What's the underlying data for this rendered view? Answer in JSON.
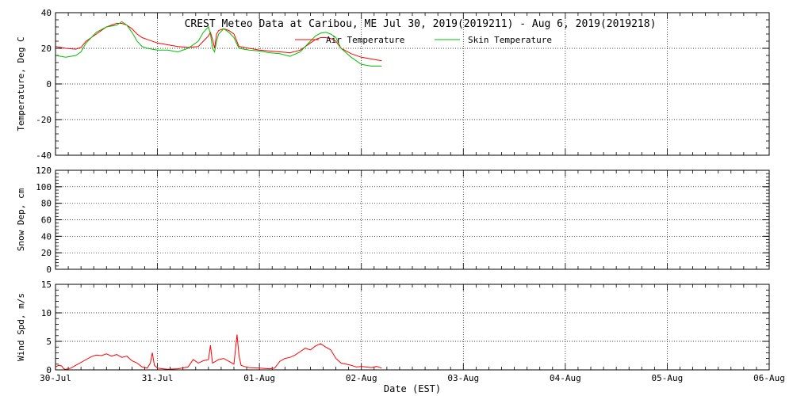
{
  "title": "CREST Meteo Data at Caribou, ME   Jul 30, 2019(2019211) - Aug  6, 2019(2019218)",
  "xlabel": "Date (EST)",
  "colors": {
    "air": "#ff0000",
    "skin": "#00c000",
    "wind": "#ff0000",
    "axes": "#000000"
  },
  "chart_data": [
    {
      "type": "line",
      "ylabel": "Temperature, Deg C",
      "ylim": [
        -40,
        40
      ],
      "yticks": [
        -40,
        -20,
        0,
        20,
        40
      ],
      "xlim": [
        0,
        7
      ],
      "x_unit": "days since 30-Jul 00:00 EST",
      "grid": true,
      "legend_position": "top-center",
      "series": [
        {
          "name": "Air Temperature",
          "color": "#ff0000",
          "x": [
            0,
            0.1,
            0.2,
            0.25,
            0.3,
            0.4,
            0.5,
            0.6,
            0.65,
            0.7,
            0.75,
            0.8,
            0.85,
            0.9,
            1.0,
            1.1,
            1.2,
            1.3,
            1.4,
            1.45,
            1.5,
            1.52,
            1.54,
            1.56,
            1.58,
            1.6,
            1.65,
            1.7,
            1.75,
            1.8,
            1.9,
            2.0,
            2.1,
            2.2,
            2.3,
            2.4,
            2.5,
            2.55,
            2.6,
            2.65,
            2.7,
            2.75,
            2.8,
            2.9,
            3.0,
            3.1,
            3.2
          ],
          "y": [
            21,
            20,
            19.5,
            20.5,
            24,
            28,
            32,
            34,
            34,
            33,
            31,
            28,
            26,
            25,
            23,
            22,
            21,
            20.5,
            21,
            24,
            27,
            29,
            25,
            20,
            28,
            30,
            31,
            30,
            28,
            21,
            20,
            19,
            18.5,
            18,
            17.5,
            19,
            23,
            25,
            26,
            26,
            25.5,
            24,
            20,
            17,
            15,
            14,
            13
          ]
        },
        {
          "name": "Skin Temperature",
          "color": "#00c000",
          "x": [
            0,
            0.1,
            0.2,
            0.25,
            0.3,
            0.4,
            0.5,
            0.6,
            0.65,
            0.7,
            0.75,
            0.8,
            0.85,
            0.9,
            1.0,
            1.1,
            1.2,
            1.3,
            1.4,
            1.45,
            1.5,
            1.52,
            1.54,
            1.56,
            1.58,
            1.6,
            1.65,
            1.7,
            1.75,
            1.8,
            1.9,
            2.0,
            2.1,
            2.2,
            2.3,
            2.4,
            2.5,
            2.55,
            2.6,
            2.65,
            2.7,
            2.75,
            2.8,
            2.9,
            3.0,
            3.1,
            3.2
          ],
          "y": [
            16,
            15,
            16,
            18,
            23,
            29,
            32,
            33,
            35,
            33,
            29,
            24,
            21,
            20,
            19,
            19,
            18,
            20,
            24,
            29,
            32,
            28,
            20,
            18,
            24,
            28,
            31,
            29,
            26,
            20,
            19,
            18.5,
            17.5,
            17,
            15.5,
            18,
            24,
            27,
            28.5,
            29,
            28,
            26,
            20,
            15,
            11,
            10,
            10
          ]
        }
      ]
    },
    {
      "type": "line",
      "ylabel": "Snow Dep, cm",
      "ylim": [
        0,
        120
      ],
      "yticks": [
        0,
        20,
        40,
        60,
        80,
        100,
        120
      ],
      "xlim": [
        0,
        7
      ],
      "grid": true,
      "series": []
    },
    {
      "type": "line",
      "ylabel": "Wind Spd, m/s",
      "ylim": [
        0,
        15
      ],
      "yticks": [
        0,
        5,
        10,
        15
      ],
      "xlim": [
        0,
        7
      ],
      "grid": true,
      "series": [
        {
          "color": "#ff0000",
          "x": [
            0,
            0.03,
            0.06,
            0.08,
            0.1,
            0.15,
            0.2,
            0.3,
            0.35,
            0.4,
            0.45,
            0.5,
            0.55,
            0.6,
            0.65,
            0.7,
            0.75,
            0.8,
            0.85,
            0.9,
            0.93,
            0.95,
            0.97,
            1.0,
            1.05,
            1.1,
            1.2,
            1.3,
            1.35,
            1.4,
            1.45,
            1.5,
            1.52,
            1.54,
            1.56,
            1.6,
            1.65,
            1.7,
            1.75,
            1.78,
            1.8,
            1.82,
            1.85,
            1.9,
            2.0,
            2.1,
            2.15,
            2.2,
            2.25,
            2.3,
            2.35,
            2.4,
            2.45,
            2.5,
            2.55,
            2.6,
            2.65,
            2.7,
            2.75,
            2.8,
            2.85,
            2.9,
            2.95,
            3.0,
            3.05,
            3.1,
            3.15,
            3.2
          ],
          "y": [
            0.5,
            0.8,
            0.7,
            0.2,
            0.1,
            0.3,
            0.8,
            1.8,
            2.3,
            2.6,
            2.5,
            2.8,
            2.4,
            2.7,
            2.2,
            2.4,
            1.6,
            1.2,
            0.5,
            0.3,
            1.2,
            3.0,
            0.8,
            0.3,
            0.2,
            0.1,
            0.2,
            0.5,
            1.8,
            1.2,
            1.6,
            1.8,
            4.3,
            1.2,
            1.4,
            1.8,
            2.0,
            1.5,
            1.0,
            6.2,
            2.5,
            0.8,
            0.6,
            0.4,
            0.3,
            0.2,
            0.3,
            1.5,
            2.0,
            2.2,
            2.6,
            3.2,
            3.8,
            3.5,
            4.2,
            4.6,
            4.0,
            3.5,
            2.0,
            1.2,
            1.0,
            0.8,
            0.5,
            0.6,
            0.5,
            0.4,
            0.6,
            0.3
          ]
        }
      ]
    }
  ],
  "x_ticks": [
    "30-Jul",
    "31-Jul",
    "01-Aug",
    "02-Aug",
    "03-Aug",
    "04-Aug",
    "05-Aug",
    "06-Aug"
  ]
}
